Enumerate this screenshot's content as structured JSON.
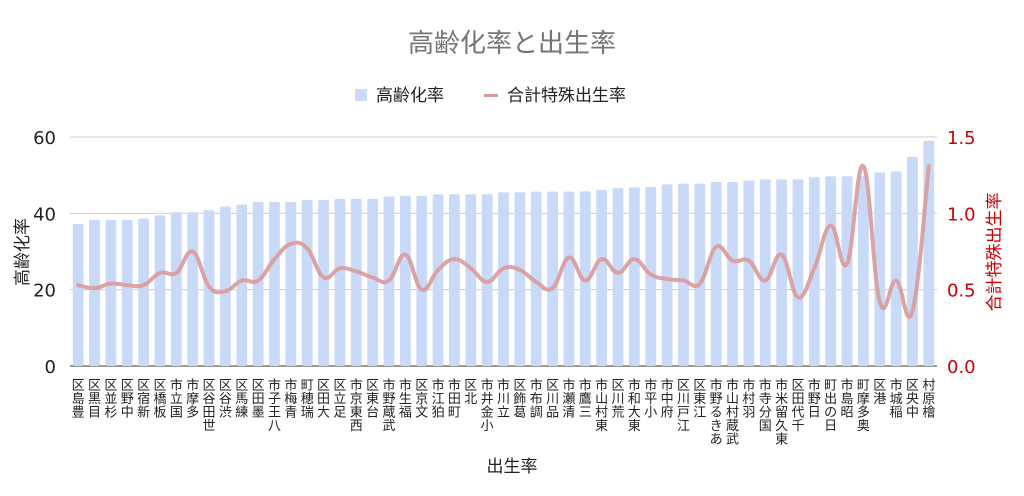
{
  "chart_data": {
    "type": "bar+line",
    "title": "高齢化率と出生率",
    "xlabel": "出生率",
    "ylabel": "高齢化率",
    "y2label": "合計特殊出生率",
    "ylim": [
      0,
      60
    ],
    "y2lim": [
      0.0,
      1.5
    ],
    "yticks": [
      "0",
      "20",
      "40",
      "60"
    ],
    "y2ticks": [
      "0.0",
      "0.5",
      "1.0",
      "1.5"
    ],
    "grid": true,
    "legend_position": "top",
    "categories": [
      "豊島区",
      "目黒区",
      "杉並区",
      "中野区",
      "新宿区",
      "板橋区",
      "国立市",
      "多摩市",
      "世田谷区",
      "渋谷区",
      "練馬区",
      "墨田区",
      "八王子市",
      "青梅市",
      "瑞穂町",
      "大田区",
      "足立区",
      "西東京市",
      "台東区",
      "武蔵野市",
      "福生市",
      "文京区",
      "狛江市",
      "町田市",
      "北区",
      "小金井市",
      "立川市",
      "葛飾区",
      "調布市",
      "品川区",
      "清瀬市",
      "三鷹市",
      "東村山市",
      "荒川区",
      "東大和市",
      "小平市",
      "府中市",
      "江戸川区",
      "江東区",
      "あきる野市",
      "武蔵村山市",
      "羽村市",
      "国分寺市",
      "東久留米市",
      "千代田区",
      "日野市",
      "日の出町",
      "昭島市",
      "奥多摩町",
      "港区",
      "稲城市",
      "中央区",
      "檜原村"
    ],
    "series": [
      {
        "name": "高齢化率",
        "type": "bar",
        "axis": "left",
        "color": "#c9daf8",
        "values": [
          37.2,
          38.3,
          38.3,
          38.3,
          38.6,
          39.5,
          40.3,
          40.3,
          40.8,
          41.8,
          42.3,
          43.0,
          43.0,
          43.0,
          43.5,
          43.5,
          43.8,
          43.8,
          43.8,
          44.4,
          44.6,
          44.6,
          45.0,
          45.0,
          45.0,
          45.0,
          45.5,
          45.5,
          45.7,
          45.7,
          45.7,
          45.8,
          46.1,
          46.6,
          46.8,
          46.9,
          47.6,
          47.8,
          47.8,
          48.2,
          48.2,
          48.6,
          48.9,
          48.9,
          48.9,
          49.5,
          49.7,
          49.7,
          49.7,
          50.7,
          51.0,
          54.8,
          59.0
        ]
      },
      {
        "name": "合計特殊出生率",
        "type": "line",
        "axis": "right",
        "color": "#d99a9a",
        "values": [
          0.53,
          0.51,
          0.54,
          0.53,
          0.53,
          0.61,
          0.61,
          0.75,
          0.52,
          0.49,
          0.56,
          0.56,
          0.7,
          0.8,
          0.77,
          0.58,
          0.64,
          0.62,
          0.58,
          0.56,
          0.73,
          0.5,
          0.63,
          0.7,
          0.64,
          0.55,
          0.64,
          0.63,
          0.55,
          0.51,
          0.71,
          0.56,
          0.7,
          0.61,
          0.7,
          0.6,
          0.57,
          0.56,
          0.54,
          0.78,
          0.69,
          0.69,
          0.56,
          0.73,
          0.45,
          0.64,
          0.92,
          0.67,
          1.31,
          0.42,
          0.56,
          0.36,
          1.31
        ]
      }
    ]
  },
  "colors": {
    "title": "#757575",
    "text": "#222222",
    "right_axis": "#cc0000",
    "grid": "#cccccc",
    "axis_line": "#333333"
  }
}
